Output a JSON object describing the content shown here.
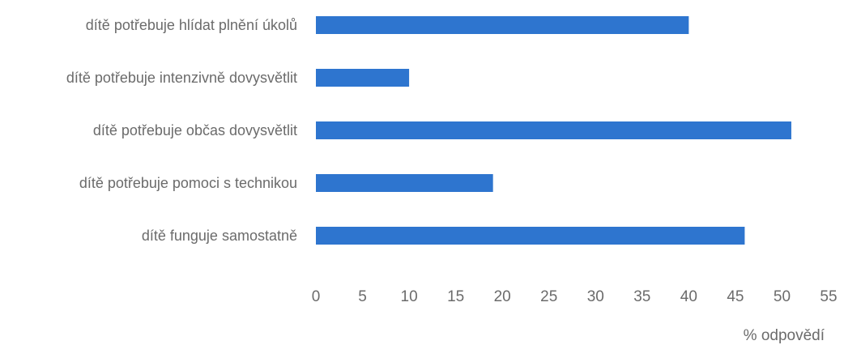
{
  "chart_data": {
    "type": "bar",
    "orientation": "horizontal",
    "categories": [
      "dítě potřebuje hlídat plnění úkolů",
      "dítě potřebuje intenzivně dovysvětlit",
      "dítě potřebuje občas dovysvětlit",
      "dítě potřebuje pomoci s technikou",
      "dítě funguje samostatně"
    ],
    "values": [
      40,
      10,
      51,
      19,
      46
    ],
    "xlabel": "% odpovědí",
    "ylabel": "",
    "xlim": [
      0,
      55
    ],
    "xticks": [
      "0",
      "5",
      "10",
      "15",
      "20",
      "25",
      "30",
      "35",
      "40",
      "45",
      "50",
      "55"
    ],
    "grid": false,
    "legend": "none",
    "bar_color": "#2e75cf"
  }
}
